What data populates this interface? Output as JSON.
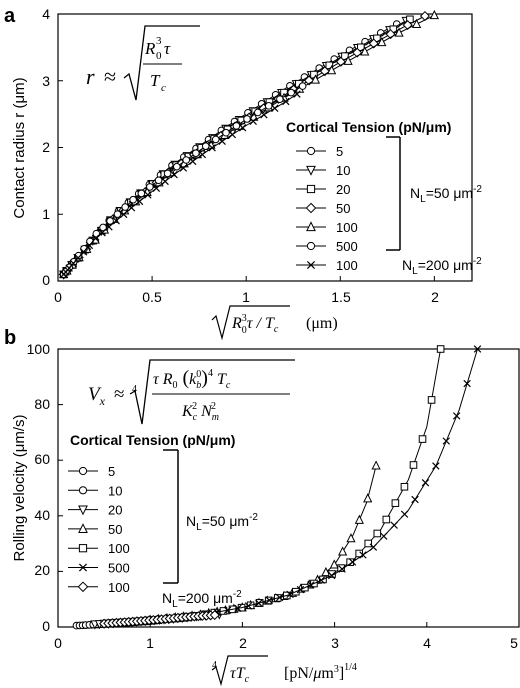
{
  "chart_data": [
    {
      "panel": "a",
      "type": "line",
      "ylabel": "Contact radius r (μm)",
      "xlabel_unit": "(μm)",
      "xlim": [
        0,
        2.2
      ],
      "ylim": [
        0,
        4
      ],
      "xticks": [
        "0",
        "0.5",
        "1",
        "1.5",
        "2"
      ],
      "yticks": [
        "0",
        "1",
        "2",
        "3",
        "4"
      ],
      "formula": "r ≈ √(R0³τ / Tc)",
      "legend_title": "Cortical Tension (pN/μm)",
      "legend_entries": [
        "5",
        "10",
        "20",
        "50",
        "100",
        "500",
        "100"
      ],
      "group_labels": [
        "NL=50 μm-2",
        "NL=200 μm-2"
      ],
      "series": [
        {
          "name": "5",
          "marker": "circle",
          "x": [
            0.03,
            0.3,
            0.6,
            0.9,
            1.2,
            1.5,
            1.8
          ],
          "y": [
            0.1,
            1.0,
            1.72,
            2.32,
            2.87,
            3.38,
            3.85
          ]
        },
        {
          "name": "10",
          "marker": "triangle-down",
          "x": [
            0.03,
            0.3,
            0.6,
            0.9,
            1.2,
            1.5,
            1.8,
            1.85
          ],
          "y": [
            0.1,
            0.98,
            1.7,
            2.3,
            2.84,
            3.35,
            3.82,
            3.9
          ]
        },
        {
          "name": "20",
          "marker": "square",
          "x": [
            0.03,
            0.3,
            0.6,
            0.9,
            1.2,
            1.5,
            1.8,
            1.87
          ],
          "y": [
            0.1,
            0.97,
            1.68,
            2.27,
            2.82,
            3.33,
            3.8,
            3.92
          ]
        },
        {
          "name": "50",
          "marker": "diamond",
          "x": [
            0.03,
            0.3,
            0.6,
            0.9,
            1.2,
            1.5,
            1.8,
            1.95
          ],
          "y": [
            0.1,
            0.95,
            1.65,
            2.24,
            2.78,
            3.28,
            3.75,
            3.97
          ]
        },
        {
          "name": "100",
          "marker": "triangle-up",
          "x": [
            0.03,
            0.3,
            0.6,
            0.9,
            1.2,
            1.5,
            1.8,
            2.0
          ],
          "y": [
            0.1,
            0.93,
            1.62,
            2.21,
            2.74,
            3.23,
            3.7,
            3.98
          ]
        },
        {
          "name": "500",
          "marker": "circle",
          "x": [
            0.03,
            0.2,
            0.4,
            0.6,
            0.8,
            1.0,
            1.2,
            1.3
          ],
          "y": [
            0.1,
            0.7,
            1.22,
            1.65,
            2.05,
            2.42,
            2.76,
            2.92
          ]
        },
        {
          "name": "100",
          "marker": "x",
          "x": [
            0.03,
            0.2,
            0.4,
            0.6,
            0.8,
            1.0,
            1.2,
            1.27
          ],
          "y": [
            0.1,
            0.64,
            1.12,
            1.56,
            1.96,
            2.33,
            2.67,
            2.8
          ]
        }
      ]
    },
    {
      "panel": "b",
      "type": "line",
      "ylabel": "Rolling velocity (μm/s)",
      "xlabel_unit": "[pN/μm³]1/4",
      "xlim": [
        0,
        5
      ],
      "ylim": [
        0,
        100
      ],
      "xticks": [
        "0",
        "1",
        "2",
        "3",
        "4",
        "5"
      ],
      "yticks": [
        "0",
        "20",
        "40",
        "60",
        "80",
        "100"
      ],
      "formula": "Vx ≈ ⁴√(τ R0 (kb0)⁴ Tc / (Kc² Nm²))",
      "legend_title": "Cortical Tension (pN/μm)",
      "legend_entries": [
        "5",
        "10",
        "20",
        "50",
        "100",
        "500",
        "100"
      ],
      "group_labels": [
        "NL=50 μm-2",
        "NL=200 μm-2"
      ],
      "series": [
        {
          "name": "5",
          "marker": "circle",
          "x": [
            0.2,
            0.5,
            0.8,
            1.0,
            1.1
          ],
          "y": [
            0.5,
            1.0,
            1.6,
            2.1,
            2.4
          ]
        },
        {
          "name": "10",
          "marker": "circle",
          "x": [
            0.3,
            0.6,
            0.9,
            1.2,
            1.4
          ],
          "y": [
            0.7,
            1.4,
            2.0,
            2.8,
            3.3
          ]
        },
        {
          "name": "20",
          "marker": "triangle-down",
          "x": [
            0.4,
            0.8,
            1.2,
            1.5,
            1.75
          ],
          "y": [
            1.0,
            1.9,
            2.9,
            3.9,
            4.6
          ]
        },
        {
          "name": "50",
          "marker": "triangle-up",
          "x": [
            1.0,
            1.5,
            2.0,
            2.5,
            2.8,
            3.0,
            3.2,
            3.35,
            3.45
          ],
          "y": [
            2.5,
            4.2,
            7.0,
            11.5,
            16.5,
            22.5,
            33.0,
            45.0,
            58.0
          ]
        },
        {
          "name": "100",
          "marker": "square",
          "x": [
            1.5,
            2.0,
            2.5,
            2.9,
            3.2,
            3.5,
            3.8,
            4.0,
            4.15
          ],
          "y": [
            4.0,
            7.0,
            11.5,
            17.5,
            24.0,
            35.0,
            53.0,
            72.0,
            100.0
          ]
        },
        {
          "name": "500",
          "marker": "x",
          "x": [
            1.5,
            2.0,
            2.5,
            3.0,
            3.4,
            3.8,
            4.1,
            4.35,
            4.55
          ],
          "y": [
            4.0,
            7.0,
            11.5,
            19.0,
            28.0,
            42.0,
            58.0,
            78.0,
            100.0
          ]
        },
        {
          "name": "100",
          "marker": "diamond",
          "x": [
            0.5,
            0.8,
            1.1,
            1.4,
            1.7
          ],
          "y": [
            1.2,
            1.9,
            2.7,
            3.6,
            4.3
          ]
        }
      ]
    }
  ]
}
